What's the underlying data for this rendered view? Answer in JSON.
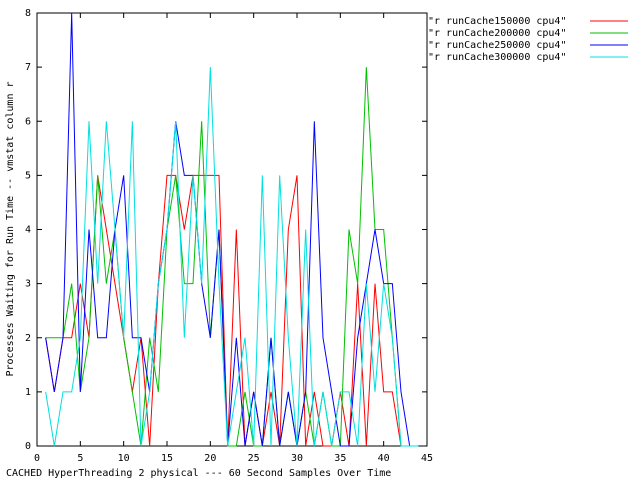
{
  "chart_data": {
    "type": "line",
    "xlabel": "CACHED HyperThreading 2 physical --- 60 Second Samples Over Time",
    "ylabel": "Processes Waiting for Run Time -- vmstat column r",
    "x": [
      1,
      2,
      3,
      4,
      5,
      6,
      7,
      8,
      9,
      10,
      11,
      12,
      13,
      14,
      15,
      16,
      17,
      18,
      19,
      20,
      21,
      22,
      23,
      24,
      25,
      26,
      27,
      28,
      29,
      30,
      31,
      32,
      33,
      34,
      35,
      36,
      37,
      38,
      39,
      40,
      41,
      42,
      43,
      44
    ],
    "series": [
      {
        "name": "\"r runCache150000 cpu4\"",
        "color": "#ff0000",
        "values": [
          2,
          1,
          2,
          2,
          3,
          2,
          5,
          4,
          3,
          2,
          1,
          2,
          0,
          3,
          5,
          5,
          4,
          5,
          5,
          5,
          5,
          0,
          4,
          0,
          1,
          0,
          1,
          0,
          4,
          5,
          0,
          1,
          0,
          0,
          1,
          0,
          3,
          0,
          3,
          1,
          1,
          0,
          0,
          0
        ]
      },
      {
        "name": "\"r runCache200000 cpu4\"",
        "color": "#00c000",
        "values": [
          2,
          2,
          2,
          3,
          1,
          2,
          5,
          3,
          4,
          2,
          1,
          0,
          2,
          1,
          4,
          5,
          3,
          3,
          6,
          2,
          4,
          0,
          0,
          1,
          0,
          0,
          2,
          0,
          1,
          0,
          1,
          0,
          1,
          0,
          0,
          4,
          3,
          7,
          4,
          4,
          2,
          0,
          0,
          0
        ]
      },
      {
        "name": "\"r runCache250000 cpu4\"",
        "color": "#0000ff",
        "values": [
          2,
          1,
          2,
          8,
          1,
          4,
          2,
          2,
          4,
          5,
          2,
          2,
          1,
          3,
          4,
          6,
          5,
          5,
          3,
          2,
          4,
          0,
          2,
          0,
          1,
          0,
          2,
          0,
          1,
          0,
          1,
          6,
          2,
          1,
          0,
          0,
          2,
          3,
          4,
          3,
          3,
          1,
          0,
          0
        ]
      },
      {
        "name": "\"r runCache300000 cpu4\"",
        "color": "#00e0e0",
        "values": [
          1,
          0,
          1,
          1,
          2,
          6,
          3,
          6,
          4,
          2,
          6,
          0,
          1,
          3,
          4,
          6,
          2,
          5,
          3,
          7,
          3,
          0,
          1,
          2,
          0,
          5,
          0,
          5,
          2,
          0,
          4,
          0,
          1,
          0,
          1,
          1,
          0,
          3,
          1,
          3,
          2,
          0,
          0,
          0
        ]
      }
    ],
    "xlim": [
      0,
      45
    ],
    "xticks": [
      0,
      5,
      10,
      15,
      20,
      25,
      30,
      35,
      40,
      45
    ],
    "ylim": [
      0,
      8
    ],
    "yticks": [
      0,
      1,
      2,
      3,
      4,
      5,
      6,
      7,
      8
    ]
  }
}
